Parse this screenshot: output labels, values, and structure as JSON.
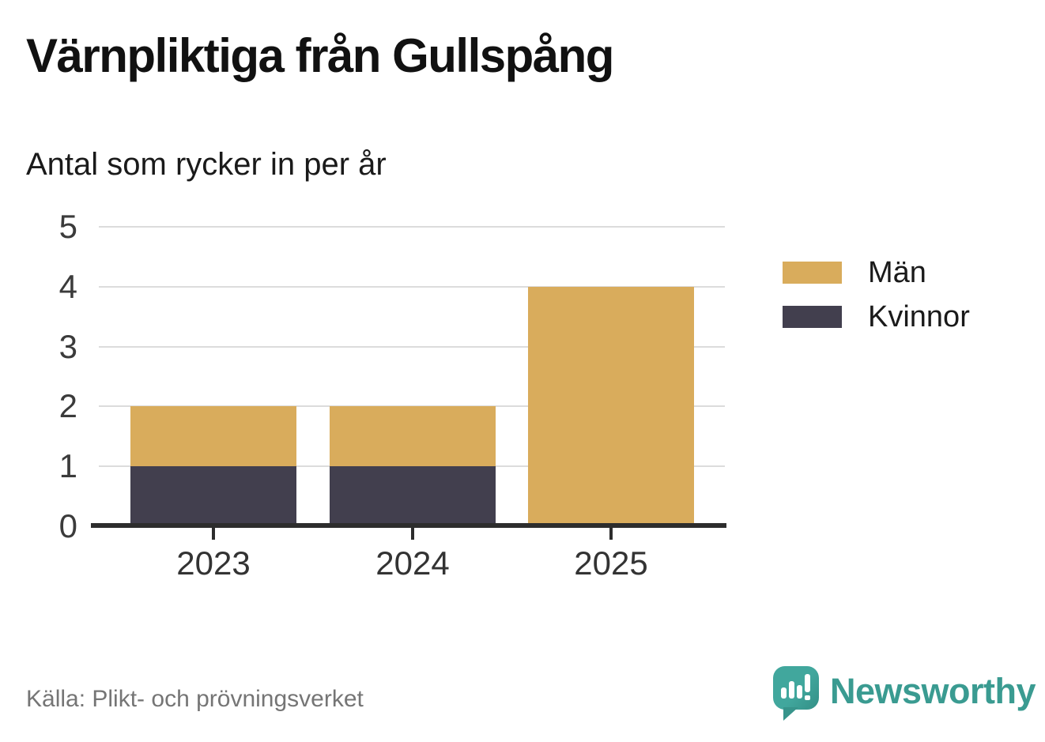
{
  "header": {
    "title": "Värnpliktiga från Gullspång",
    "subtitle": "Antal som rycker in per år"
  },
  "footer": {
    "source": "Källa: Plikt- och prövningsverket",
    "brand_name": "Newsworthy"
  },
  "legend": [
    {
      "label": "Män",
      "color": "#d9ac5c"
    },
    {
      "label": "Kvinnor",
      "color": "#423f4e"
    }
  ],
  "colors": {
    "men": "#d9ac5c",
    "women": "#423f4e",
    "gridline": "#dcdcdc",
    "axis": "#2d2d2d",
    "brand_teal": "#3a9b91",
    "source_gray": "#757575"
  },
  "chart_data": {
    "type": "bar",
    "stacked": true,
    "title": "Värnpliktiga från Gullspång",
    "subtitle": "Antal som rycker in per år",
    "categories": [
      "2023",
      "2024",
      "2025"
    ],
    "series": [
      {
        "name": "Kvinnor",
        "color": "#423f4e",
        "values": [
          1,
          1,
          0
        ]
      },
      {
        "name": "Män",
        "color": "#d9ac5c",
        "values": [
          1,
          1,
          4
        ]
      }
    ],
    "xlabel": "",
    "ylabel": "",
    "ylim": [
      0,
      5
    ],
    "yticks": [
      0,
      1,
      2,
      3,
      4,
      5
    ],
    "grid": true,
    "legend_position": "right",
    "source": "Källa: Plikt- och prövningsverket"
  }
}
